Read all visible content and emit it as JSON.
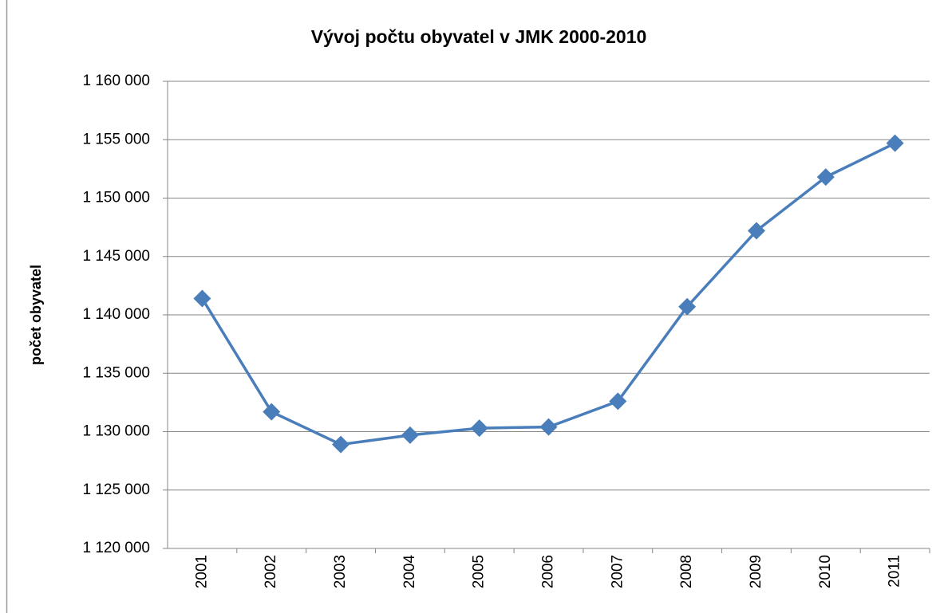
{
  "chart_data": {
    "type": "line",
    "title": "Vývoj počtu obyvatel v JMK 2000-2010",
    "y_label": "počet obyvatel",
    "categories": [
      "2001",
      "2002",
      "2003",
      "2004",
      "2005",
      "2006",
      "2007",
      "2008",
      "2009",
      "2010",
      "2011"
    ],
    "series": [
      {
        "name": "počet obyvatel",
        "color": "#4a7ebb",
        "values": [
          1141400,
          1131700,
          1128900,
          1129700,
          1130300,
          1130400,
          1132600,
          1140700,
          1147200,
          1151800,
          1154700
        ]
      }
    ],
    "ylim": [
      1120000,
      1160000
    ],
    "yticks": [
      {
        "value": 1120000,
        "label": "1 120 000"
      },
      {
        "value": 1125000,
        "label": "1 125 000"
      },
      {
        "value": 1130000,
        "label": "1 130 000"
      },
      {
        "value": 1135000,
        "label": "1 135 000"
      },
      {
        "value": 1140000,
        "label": "1 140 000"
      },
      {
        "value": 1145000,
        "label": "1 145 000"
      },
      {
        "value": 1150000,
        "label": "1 150 000"
      },
      {
        "value": 1155000,
        "label": "1 155 000"
      },
      {
        "value": 1160000,
        "label": "1 160 000"
      }
    ],
    "grid": true,
    "legend": false
  }
}
